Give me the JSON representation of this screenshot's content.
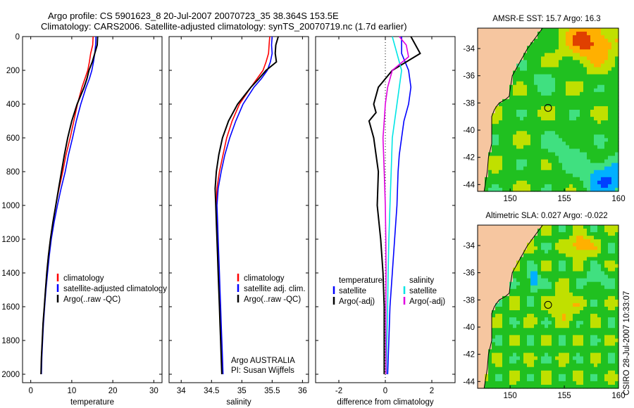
{
  "header": {
    "title_line1": "Argo profile: CS 5901623_8 20-Jul-2007 20070723_35 38.364S 153.5E",
    "title_line2": "Climatology: CARS2006. Satellite-adjusted climatology: synTS_20070719.nc (1.7d earlier)"
  },
  "side_label": "CSIRO 28-Jul-2007 10:33:07",
  "colors": {
    "climatology": "#ff0000",
    "satellite": "#0000ff",
    "argo": "#000000",
    "cyan": "#00e5e5",
    "magenta": "#e000e0",
    "land": "#f6c6a0"
  },
  "chart_data": [
    {
      "type": "line",
      "id": "temperature",
      "xlabel": "temperature",
      "ylabel": "",
      "xlim": [
        -2,
        32
      ],
      "ylim": [
        2050,
        0
      ],
      "xticks": [
        "0",
        "10",
        "20",
        "30"
      ],
      "xtick_values": [
        0,
        10,
        20,
        30
      ],
      "yticks": [
        "0",
        "200",
        "400",
        "600",
        "800",
        "1000",
        "1200",
        "1400",
        "1600",
        "1800",
        "2000"
      ],
      "ytick_values": [
        0,
        200,
        400,
        600,
        800,
        1000,
        1200,
        1400,
        1600,
        1800,
        2000
      ],
      "legend": [
        "climatology",
        "satellite-adjusted climatology",
        "Argo(..raw -QC)"
      ],
      "series": [
        {
          "name": "climatology",
          "color": "#ff0000",
          "points": [
            [
              15.2,
              0
            ],
            [
              15.1,
              50
            ],
            [
              14.6,
              100
            ],
            [
              14.3,
              150
            ],
            [
              13.9,
              200
            ],
            [
              13.2,
              250
            ],
            [
              12.5,
              300
            ],
            [
              11.4,
              400
            ],
            [
              10.5,
              500
            ],
            [
              9.6,
              600
            ],
            [
              8.6,
              700
            ],
            [
              7.8,
              800
            ],
            [
              6.9,
              900
            ],
            [
              6.1,
              1000
            ],
            [
              5.4,
              1100
            ],
            [
              4.8,
              1200
            ],
            [
              4.3,
              1300
            ],
            [
              3.9,
              1400
            ],
            [
              3.6,
              1500
            ],
            [
              3.3,
              1600
            ],
            [
              3.0,
              1700
            ],
            [
              2.8,
              1800
            ],
            [
              2.6,
              1900
            ],
            [
              2.5,
              2000
            ]
          ]
        },
        {
          "name": "satellite-adjusted climatology",
          "color": "#0000ff",
          "points": [
            [
              15.9,
              0
            ],
            [
              15.8,
              50
            ],
            [
              15.6,
              100
            ],
            [
              15.3,
              150
            ],
            [
              14.9,
              200
            ],
            [
              14.3,
              250
            ],
            [
              13.5,
              300
            ],
            [
              12.2,
              400
            ],
            [
              11.1,
              500
            ],
            [
              10.2,
              600
            ],
            [
              9.2,
              700
            ],
            [
              8.4,
              800
            ],
            [
              7.4,
              900
            ],
            [
              6.5,
              1000
            ],
            [
              5.7,
              1100
            ],
            [
              5.0,
              1200
            ],
            [
              4.5,
              1300
            ],
            [
              4.1,
              1400
            ],
            [
              3.7,
              1500
            ],
            [
              3.4,
              1600
            ],
            [
              3.1,
              1700
            ],
            [
              2.9,
              1800
            ],
            [
              2.7,
              1900
            ],
            [
              2.6,
              2000
            ]
          ]
        },
        {
          "name": "Argo(..raw -QC)",
          "color": "#000000",
          "points": [
            [
              16.3,
              0
            ],
            [
              16.2,
              50
            ],
            [
              15.6,
              100
            ],
            [
              15.0,
              150
            ],
            [
              14.2,
              200
            ],
            [
              13.7,
              250
            ],
            [
              13.0,
              300
            ],
            [
              11.3,
              400
            ],
            [
              10.0,
              500
            ],
            [
              9.0,
              600
            ],
            [
              8.2,
              700
            ],
            [
              7.5,
              800
            ],
            [
              6.8,
              900
            ],
            [
              6.1,
              1000
            ],
            [
              5.4,
              1100
            ],
            [
              4.8,
              1200
            ],
            [
              4.3,
              1300
            ],
            [
              3.9,
              1400
            ],
            [
              3.6,
              1500
            ],
            [
              3.3,
              1600
            ],
            [
              3.0,
              1700
            ],
            [
              2.8,
              1800
            ],
            [
              2.6,
              1900
            ],
            [
              2.5,
              2000
            ]
          ]
        }
      ]
    },
    {
      "type": "line",
      "id": "salinity",
      "xlabel": "salinity",
      "xlim": [
        33.8,
        36.1
      ],
      "ylim": [
        2050,
        0
      ],
      "xticks": [
        "34",
        "34.5",
        "35",
        "35.5",
        "36"
      ],
      "xtick_values": [
        34,
        34.5,
        35,
        35.5,
        36
      ],
      "legend": [
        "climatology",
        "satellite adj. clim.",
        "Argo(..raw -QC)"
      ],
      "annotations": [
        "Argo AUSTRALIA",
        "PI: Susan Wijffels"
      ],
      "series": [
        {
          "name": "climatology",
          "color": "#ff0000",
          "points": [
            [
              35.46,
              0
            ],
            [
              35.45,
              50
            ],
            [
              35.44,
              100
            ],
            [
              35.4,
              150
            ],
            [
              35.35,
              200
            ],
            [
              35.25,
              250
            ],
            [
              35.15,
              300
            ],
            [
              34.96,
              400
            ],
            [
              34.84,
              500
            ],
            [
              34.75,
              600
            ],
            [
              34.69,
              700
            ],
            [
              34.63,
              800
            ],
            [
              34.59,
              900
            ],
            [
              34.58,
              1000
            ],
            [
              34.59,
              1100
            ],
            [
              34.6,
              1200
            ],
            [
              34.61,
              1300
            ],
            [
              34.62,
              1400
            ],
            [
              34.63,
              1500
            ],
            [
              34.64,
              1600
            ],
            [
              34.65,
              1700
            ],
            [
              34.66,
              1800
            ],
            [
              34.67,
              1900
            ],
            [
              34.68,
              2000
            ]
          ]
        },
        {
          "name": "satellite adj. clim.",
          "color": "#0000ff",
          "points": [
            [
              35.5,
              0
            ],
            [
              35.49,
              50
            ],
            [
              35.5,
              100
            ],
            [
              35.47,
              150
            ],
            [
              35.42,
              200
            ],
            [
              35.32,
              250
            ],
            [
              35.2,
              300
            ],
            [
              35.02,
              400
            ],
            [
              34.9,
              500
            ],
            [
              34.8,
              600
            ],
            [
              34.72,
              700
            ],
            [
              34.66,
              800
            ],
            [
              34.61,
              900
            ],
            [
              34.59,
              1000
            ],
            [
              34.6,
              1100
            ],
            [
              34.61,
              1200
            ],
            [
              34.62,
              1300
            ],
            [
              34.63,
              1400
            ],
            [
              34.64,
              1500
            ],
            [
              34.65,
              1600
            ],
            [
              34.66,
              1700
            ],
            [
              34.67,
              1800
            ],
            [
              34.68,
              1900
            ],
            [
              34.69,
              2000
            ]
          ]
        },
        {
          "name": "Argo(..raw -QC)",
          "color": "#000000",
          "points": [
            [
              35.6,
              0
            ],
            [
              35.56,
              50
            ],
            [
              35.55,
              100
            ],
            [
              35.57,
              150
            ],
            [
              35.4,
              200
            ],
            [
              35.28,
              250
            ],
            [
              35.15,
              300
            ],
            [
              34.93,
              400
            ],
            [
              34.78,
              500
            ],
            [
              34.68,
              600
            ],
            [
              34.62,
              700
            ],
            [
              34.58,
              800
            ],
            [
              34.56,
              900
            ],
            [
              34.57,
              1000
            ],
            [
              34.58,
              1100
            ],
            [
              34.59,
              1200
            ],
            [
              34.6,
              1300
            ],
            [
              34.61,
              1400
            ],
            [
              34.62,
              1500
            ],
            [
              34.63,
              1600
            ],
            [
              34.64,
              1700
            ],
            [
              34.65,
              1800
            ],
            [
              34.66,
              1900
            ],
            [
              34.67,
              2000
            ]
          ]
        }
      ]
    },
    {
      "type": "line",
      "id": "difference",
      "xlabel": "difference from climatology",
      "xlim": [
        -3,
        3
      ],
      "ylim": [
        2050,
        0
      ],
      "xticks": [
        "-2",
        "0",
        "2"
      ],
      "xtick_values": [
        -2,
        0,
        2
      ],
      "legend_headers": [
        "temperature",
        "salinity"
      ],
      "legend": [
        "satellite",
        "Argo(-adj)",
        "satellite",
        "Argo(-adj)"
      ],
      "series": [
        {
          "name": "satellite",
          "group": "temperature",
          "color": "#0000ff",
          "points": [
            [
              0.7,
              0
            ],
            [
              0.7,
              100
            ],
            [
              1.0,
              200
            ],
            [
              1.1,
              300
            ],
            [
              1.0,
              400
            ],
            [
              0.8,
              500
            ],
            [
              0.7,
              600
            ],
            [
              0.6,
              700
            ],
            [
              0.55,
              800
            ],
            [
              0.5,
              1000
            ],
            [
              0.4,
              1200
            ],
            [
              0.3,
              1400
            ],
            [
              0.2,
              1600
            ],
            [
              0.15,
              1800
            ],
            [
              0.1,
              2000
            ]
          ]
        },
        {
          "name": "Argo(-adj)",
          "group": "temperature",
          "color": "#000000",
          "points": [
            [
              1.1,
              0
            ],
            [
              1.5,
              100
            ],
            [
              0.3,
              200
            ],
            [
              -0.3,
              300
            ],
            [
              -0.5,
              400
            ],
            [
              -0.4,
              450
            ],
            [
              -0.7,
              500
            ],
            [
              -0.5,
              600
            ],
            [
              -0.4,
              700
            ],
            [
              -0.3,
              800
            ],
            [
              -0.35,
              1000
            ],
            [
              -0.2,
              1200
            ],
            [
              -0.1,
              1400
            ],
            [
              -0.05,
              1600
            ],
            [
              -0.05,
              1800
            ],
            [
              -0.05,
              2000
            ]
          ]
        },
        {
          "name": "satellite",
          "group": "salinity",
          "color": "#00e5e5",
          "points": [
            [
              0.3,
              0
            ],
            [
              0.5,
              100
            ],
            [
              0.6,
              150
            ],
            [
              0.7,
              200
            ],
            [
              0.6,
              300
            ],
            [
              0.5,
              400
            ],
            [
              0.4,
              500
            ],
            [
              0.3,
              600
            ],
            [
              0.25,
              800
            ],
            [
              0.2,
              1000
            ],
            [
              0.15,
              1200
            ],
            [
              0.12,
              1400
            ],
            [
              0.1,
              1600
            ],
            [
              0.07,
              1800
            ],
            [
              0.05,
              2000
            ]
          ]
        },
        {
          "name": "Argo(-adj)",
          "group": "salinity",
          "color": "#e000e0",
          "points": [
            [
              0.6,
              0
            ],
            [
              0.9,
              50
            ],
            [
              1.0,
              120
            ],
            [
              0.3,
              200
            ],
            [
              0.1,
              300
            ],
            [
              0.0,
              400
            ],
            [
              -0.05,
              500
            ],
            [
              -0.1,
              600
            ],
            [
              -0.05,
              800
            ],
            [
              0.0,
              1000
            ],
            [
              0.02,
              1200
            ],
            [
              0.03,
              1400
            ],
            [
              0.02,
              1600
            ],
            [
              0.02,
              1800
            ],
            [
              0.03,
              2000
            ]
          ]
        }
      ]
    },
    {
      "type": "heatmap",
      "id": "sst-map",
      "title": "AMSR-E SST: 15.7 Argo: 16.3",
      "xlim": [
        147,
        160
      ],
      "ylim": [
        -44.5,
        -32.5
      ],
      "xticks": [
        "150",
        "155",
        "160"
      ],
      "xtick_values": [
        150,
        155,
        160
      ],
      "yticks": [
        "-34",
        "-36",
        "-38",
        "-40",
        "-42",
        "-44"
      ],
      "ytick_values": [
        -34,
        -36,
        -38,
        -40,
        -42,
        -44
      ],
      "argo_position": [
        153.5,
        -38.364
      ]
    },
    {
      "type": "heatmap",
      "id": "sla-map",
      "title": "Altimetric SLA: 0.027 Argo: -0.022",
      "xlim": [
        147,
        160
      ],
      "ylim": [
        -44.5,
        -32.5
      ],
      "xticks": [
        "150",
        "155",
        "160"
      ],
      "xtick_values": [
        150,
        155,
        160
      ],
      "yticks": [
        "-34",
        "-36",
        "-38",
        "-40",
        "-42",
        "-44"
      ],
      "ytick_values": [
        -34,
        -36,
        -38,
        -40,
        -42,
        -44
      ],
      "argo_position": [
        153.5,
        -38.364
      ]
    }
  ]
}
